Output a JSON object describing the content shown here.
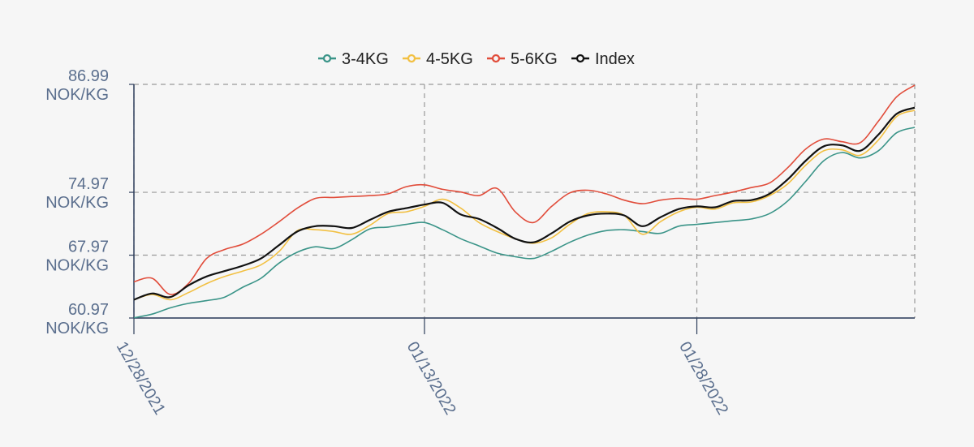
{
  "chart_data": {
    "type": "line",
    "title": "",
    "xlabel": "",
    "ylabel": "",
    "x": [
      "12/28/2021",
      "12/29/2021",
      "12/30/2021",
      "12/31/2021",
      "01/01/2022",
      "01/02/2022",
      "01/03/2022",
      "01/04/2022",
      "01/05/2022",
      "01/06/2022",
      "01/07/2022",
      "01/08/2022",
      "01/09/2022",
      "01/10/2022",
      "01/11/2022",
      "01/12/2022",
      "01/13/2022",
      "01/14/2022",
      "01/15/2022",
      "01/16/2022",
      "01/17/2022",
      "01/18/2022",
      "01/19/2022",
      "01/20/2022",
      "01/21/2022",
      "01/22/2022",
      "01/23/2022",
      "01/24/2022",
      "01/25/2022",
      "01/26/2022",
      "01/27/2022",
      "01/28/2022",
      "01/29/2022",
      "01/30/2022",
      "01/31/2022",
      "02/01/2022",
      "02/02/2022",
      "02/03/2022",
      "02/04/2022",
      "02/05/2022",
      "02/06/2022",
      "02/07/2022",
      "02/08/2022",
      "02/09/2022"
    ],
    "xticks": [
      "12/28/2021",
      "01/13/2022",
      "01/28/2022"
    ],
    "yticks": [
      {
        "value": 60.97,
        "label": "60.97",
        "unit": "NOK/KG"
      },
      {
        "value": 67.97,
        "label": "67.97",
        "unit": "NOK/KG"
      },
      {
        "value": 74.97,
        "label": "74.97",
        "unit": "NOK/KG"
      },
      {
        "value": 86.99,
        "label": "86.99",
        "unit": "NOK/KG"
      }
    ],
    "ylim": [
      60.97,
      86.99
    ],
    "grid": true,
    "legend": "top-center",
    "series": [
      {
        "name": "3-4KG",
        "color": "#3a9488",
        "values": [
          61.0,
          61.4,
          62.1,
          62.6,
          62.9,
          63.3,
          64.4,
          65.4,
          67.1,
          68.3,
          68.9,
          68.7,
          69.7,
          70.9,
          71.1,
          71.4,
          71.6,
          70.8,
          69.8,
          69.0,
          68.2,
          67.8,
          67.6,
          68.4,
          69.4,
          70.2,
          70.7,
          70.8,
          70.6,
          70.4,
          71.2,
          71.4,
          71.6,
          71.8,
          72.0,
          72.6,
          74.0,
          76.2,
          78.5,
          79.4,
          78.8,
          79.6,
          81.6,
          82.2
        ]
      },
      {
        "name": "4-5KG",
        "color": "#f2c042",
        "values": [
          63.0,
          63.6,
          63.0,
          63.8,
          64.8,
          65.6,
          66.2,
          66.9,
          68.4,
          70.7,
          70.8,
          70.6,
          70.3,
          71.3,
          72.6,
          72.8,
          73.4,
          74.2,
          73.2,
          71.6,
          70.6,
          69.8,
          69.3,
          69.9,
          71.4,
          72.6,
          72.8,
          72.4,
          70.3,
          71.7,
          72.8,
          73.3,
          73.1,
          73.8,
          73.9,
          74.6,
          75.9,
          78.0,
          79.6,
          79.7,
          79.1,
          80.8,
          83.4,
          84.1
        ]
      },
      {
        "name": "5-6KG",
        "color": "#e14c3a",
        "values": [
          65.0,
          65.4,
          63.6,
          64.8,
          67.6,
          68.6,
          69.2,
          70.3,
          71.7,
          73.2,
          74.3,
          74.4,
          74.5,
          74.6,
          74.8,
          75.6,
          75.8,
          75.3,
          75.0,
          74.6,
          75.4,
          72.8,
          71.6,
          73.4,
          74.9,
          75.2,
          74.8,
          74.1,
          73.7,
          74.1,
          74.3,
          74.2,
          74.6,
          75.0,
          75.5,
          76.0,
          77.7,
          79.8,
          80.9,
          80.6,
          80.5,
          82.9,
          85.6,
          86.9
        ]
      },
      {
        "name": "Index",
        "color": "#111111",
        "values": [
          63.0,
          63.7,
          63.3,
          64.6,
          65.6,
          66.2,
          66.8,
          67.6,
          69.1,
          70.6,
          71.2,
          71.2,
          71.0,
          71.9,
          72.8,
          73.2,
          73.6,
          73.8,
          72.5,
          72.0,
          71.0,
          69.8,
          69.4,
          70.4,
          71.7,
          72.4,
          72.6,
          72.4,
          71.2,
          72.2,
          73.1,
          73.4,
          73.3,
          74.0,
          74.1,
          74.8,
          76.4,
          78.5,
          80.1,
          80.2,
          79.6,
          81.4,
          83.7,
          84.4
        ]
      }
    ]
  }
}
